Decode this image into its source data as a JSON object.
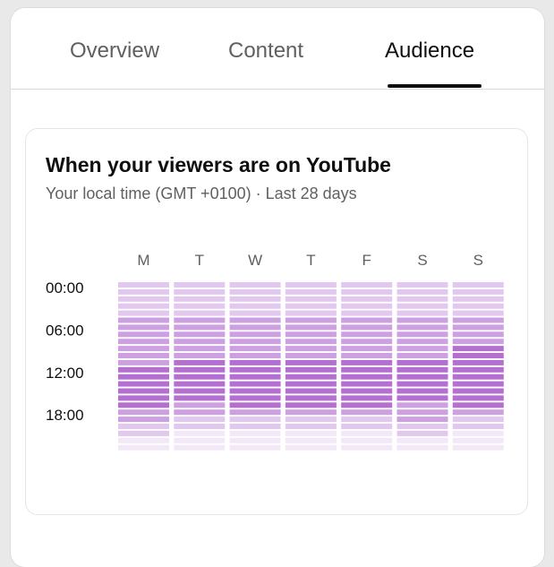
{
  "tabs": [
    {
      "label": "Overview",
      "active": false
    },
    {
      "label": "Content",
      "active": false
    },
    {
      "label": "Audience",
      "active": true
    }
  ],
  "card": {
    "title": "When your viewers are on YouTube",
    "subtitle": "Your local time (GMT +0100) · Last 28 days"
  },
  "chart_data": {
    "type": "heatmap",
    "days": [
      "M",
      "T",
      "W",
      "T",
      "F",
      "S",
      "S"
    ],
    "time_labels": [
      "00:00",
      "06:00",
      "12:00",
      "18:00"
    ],
    "hours_per_column": 24,
    "color_low": "#f7f0fb",
    "color_high": "#a34fc7",
    "intensity": [
      [
        1,
        1,
        1,
        1,
        1,
        2,
        2,
        2,
        2,
        2,
        2,
        2,
        3,
        3,
        3,
        3,
        3,
        3,
        2,
        2,
        1,
        1,
        0,
        0
      ],
      [
        1,
        1,
        1,
        1,
        1,
        2,
        2,
        2,
        2,
        2,
        2,
        3,
        3,
        3,
        3,
        3,
        3,
        2,
        2,
        1,
        1,
        0,
        0,
        0
      ],
      [
        1,
        1,
        1,
        1,
        1,
        2,
        2,
        2,
        2,
        2,
        2,
        3,
        3,
        3,
        3,
        3,
        3,
        3,
        2,
        1,
        1,
        0,
        0,
        0
      ],
      [
        1,
        1,
        1,
        1,
        1,
        2,
        2,
        2,
        2,
        2,
        2,
        3,
        3,
        3,
        3,
        3,
        3,
        3,
        2,
        1,
        1,
        0,
        0,
        0
      ],
      [
        1,
        1,
        1,
        1,
        1,
        2,
        2,
        2,
        2,
        2,
        2,
        3,
        3,
        3,
        3,
        3,
        3,
        3,
        2,
        1,
        1,
        0,
        0,
        0
      ],
      [
        1,
        1,
        1,
        1,
        1,
        2,
        2,
        2,
        2,
        2,
        2,
        3,
        3,
        3,
        3,
        3,
        3,
        2,
        2,
        2,
        1,
        1,
        0,
        0
      ],
      [
        1,
        1,
        1,
        1,
        1,
        2,
        2,
        2,
        2,
        3,
        3,
        3,
        3,
        3,
        3,
        3,
        3,
        3,
        2,
        1,
        1,
        0,
        0,
        0
      ]
    ]
  }
}
